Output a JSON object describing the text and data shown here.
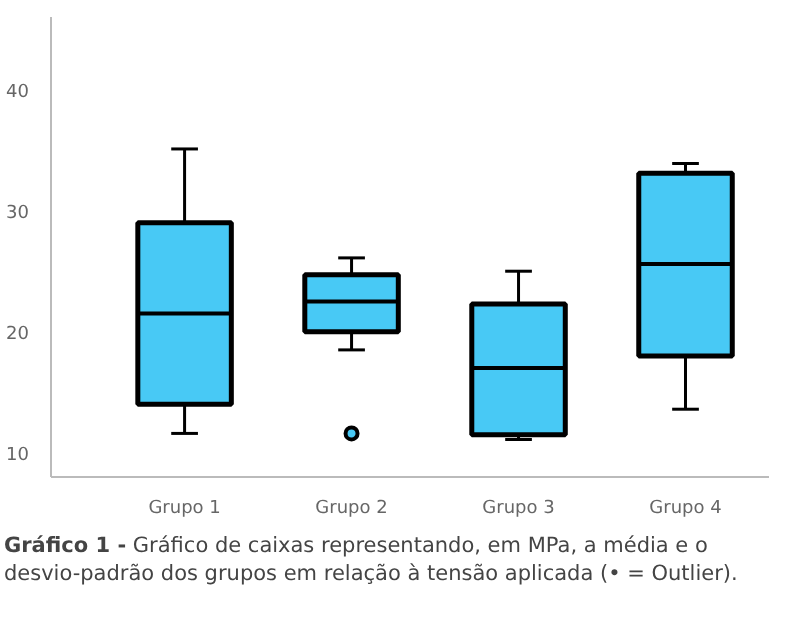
{
  "chart_data": {
    "type": "box",
    "title": "Gráfico 1 -",
    "annotations": [
      "Gráfico de caixas representando, em MPa, a média e o desvio-padrão dos grupos em relação à tensão aplicada (• = Outlier)."
    ],
    "categories": [
      "Grupo 1",
      "Grupo 2",
      "Grupo 3",
      "Grupo 4"
    ],
    "color": "#48c9f5",
    "boxes": [
      {
        "low": 11.6,
        "q1": 14,
        "median": 21.5,
        "q3": 29,
        "high": 35.1
      },
      {
        "low": 18.5,
        "q1": 20,
        "median": 22.5,
        "q3": 24.7,
        "high": 26.1,
        "outliers": [
          11.6
        ]
      },
      {
        "low": 11.1,
        "q1": 11.5,
        "median": 17,
        "q3": 22.3,
        "high": 25
      },
      {
        "low": 13.6,
        "q1": 18,
        "median": 25.6,
        "q3": 33.1,
        "high": 33.9
      }
    ],
    "ylim": [
      8,
      46
    ],
    "yticks": [
      10,
      20,
      30,
      40
    ],
    "grid": false
  }
}
